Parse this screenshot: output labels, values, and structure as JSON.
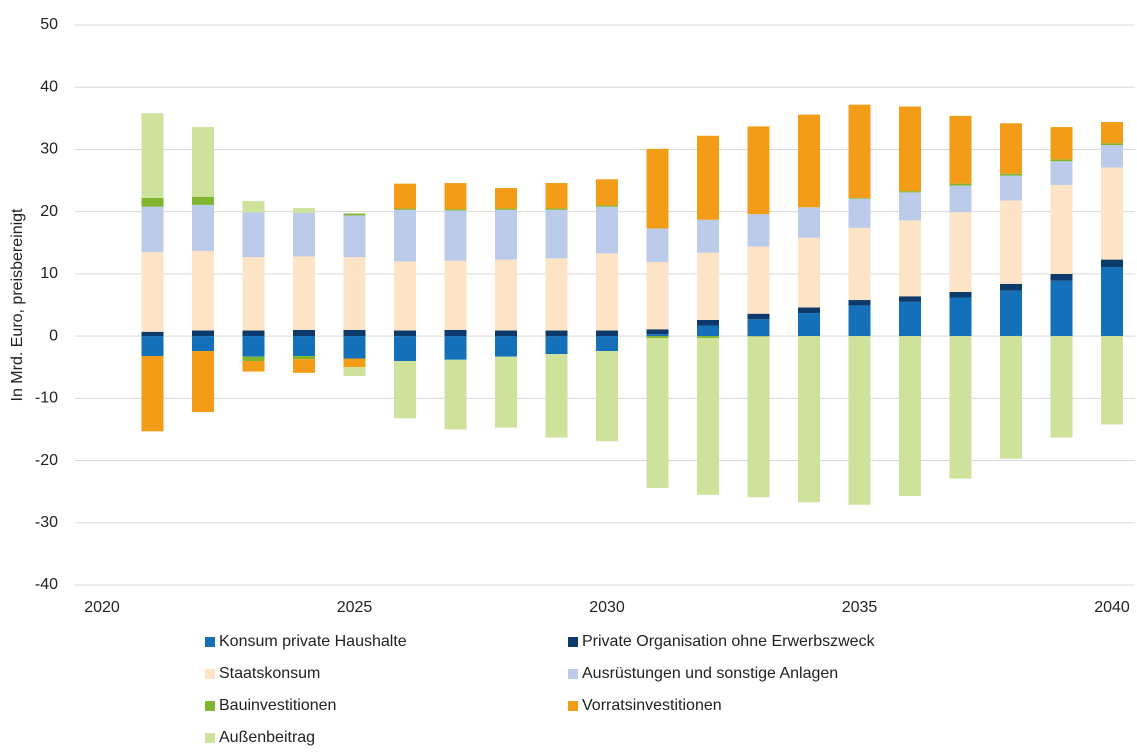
{
  "chart_data": {
    "type": "stacked-bar",
    "y_label": "In Mrd. Euro, preisbereinigt",
    "categories": [
      "2020",
      null,
      null,
      null,
      null,
      "2025",
      null,
      null,
      null,
      null,
      "2030",
      null,
      null,
      null,
      null,
      "2035",
      null,
      null,
      null,
      null,
      "2040"
    ],
    "ylim": [
      -40,
      50
    ],
    "yticks": [
      -40,
      -30,
      -20,
      -10,
      0,
      10,
      20,
      30,
      40,
      50
    ],
    "grid": true,
    "series": [
      {
        "name": "Konsum private Haushalte",
        "color": "#1470b8",
        "values": [
          0,
          -3.2,
          -2.4,
          -3.3,
          -3.2,
          -3.6,
          -4.0,
          -3.8,
          -3.3,
          -2.9,
          -2.4,
          0.3,
          1.7,
          2.7,
          3.7,
          4.9,
          5.5,
          6.2,
          7.3,
          8.9,
          11.1
        ]
      },
      {
        "name": "Private Organisation ohne Erwerbszweck",
        "color": "#0d3a6b",
        "values": [
          0,
          0.7,
          0.9,
          0.9,
          1.0,
          1.0,
          0.9,
          1.0,
          0.9,
          0.9,
          0.9,
          0.8,
          0.9,
          0.9,
          0.9,
          0.9,
          0.9,
          0.9,
          1.1,
          1.1,
          1.2
        ]
      },
      {
        "name": "Staatskonsum",
        "color": "#fde4c6",
        "values": [
          0,
          12.8,
          12.8,
          11.8,
          11.8,
          11.7,
          11.1,
          11.1,
          11.4,
          11.6,
          12.4,
          10.8,
          10.8,
          10.8,
          11.2,
          11.6,
          12.2,
          12.8,
          13.4,
          14.3,
          14.8
        ]
      },
      {
        "name": "Ausrüstungen und sonstige Anlagen",
        "color": "#bccbea",
        "values": [
          0,
          7.3,
          7.4,
          7.2,
          7.0,
          6.7,
          8.3,
          8.1,
          8.0,
          7.8,
          7.5,
          5.4,
          5.3,
          5.2,
          4.9,
          4.7,
          4.5,
          4.3,
          4.0,
          3.8,
          3.6
        ]
      },
      {
        "name": "Bauinvestitionen",
        "color": "#80b62f",
        "values": [
          0,
          1.4,
          1.3,
          -0.7,
          -0.5,
          0.3,
          0.2,
          0.2,
          0.2,
          0.2,
          0.2,
          -0.3,
          -0.3,
          -0.1,
          0,
          0.1,
          0.2,
          0.3,
          0.3,
          0.3,
          0.3
        ]
      },
      {
        "name": "Vorratsinvestitionen",
        "color": "#f39c17",
        "values": [
          0,
          -12.1,
          -9.8,
          -1.7,
          -2.2,
          -1.4,
          4.0,
          4.2,
          3.3,
          4.1,
          4.2,
          12.8,
          13.5,
          14.1,
          14.9,
          15.0,
          13.6,
          10.9,
          8.1,
          5.2,
          3.4
        ]
      },
      {
        "name": "Außenbeitrag",
        "color": "#cee29c",
        "values": [
          0,
          13.6,
          11.2,
          1.8,
          0.8,
          -1.4,
          -9.2,
          -11.2,
          -11.4,
          -13.4,
          -14.5,
          -24.1,
          -25.2,
          -25.8,
          -26.7,
          -27.1,
          -25.7,
          -22.9,
          -19.7,
          -16.3,
          -14.2
        ]
      }
    ]
  }
}
